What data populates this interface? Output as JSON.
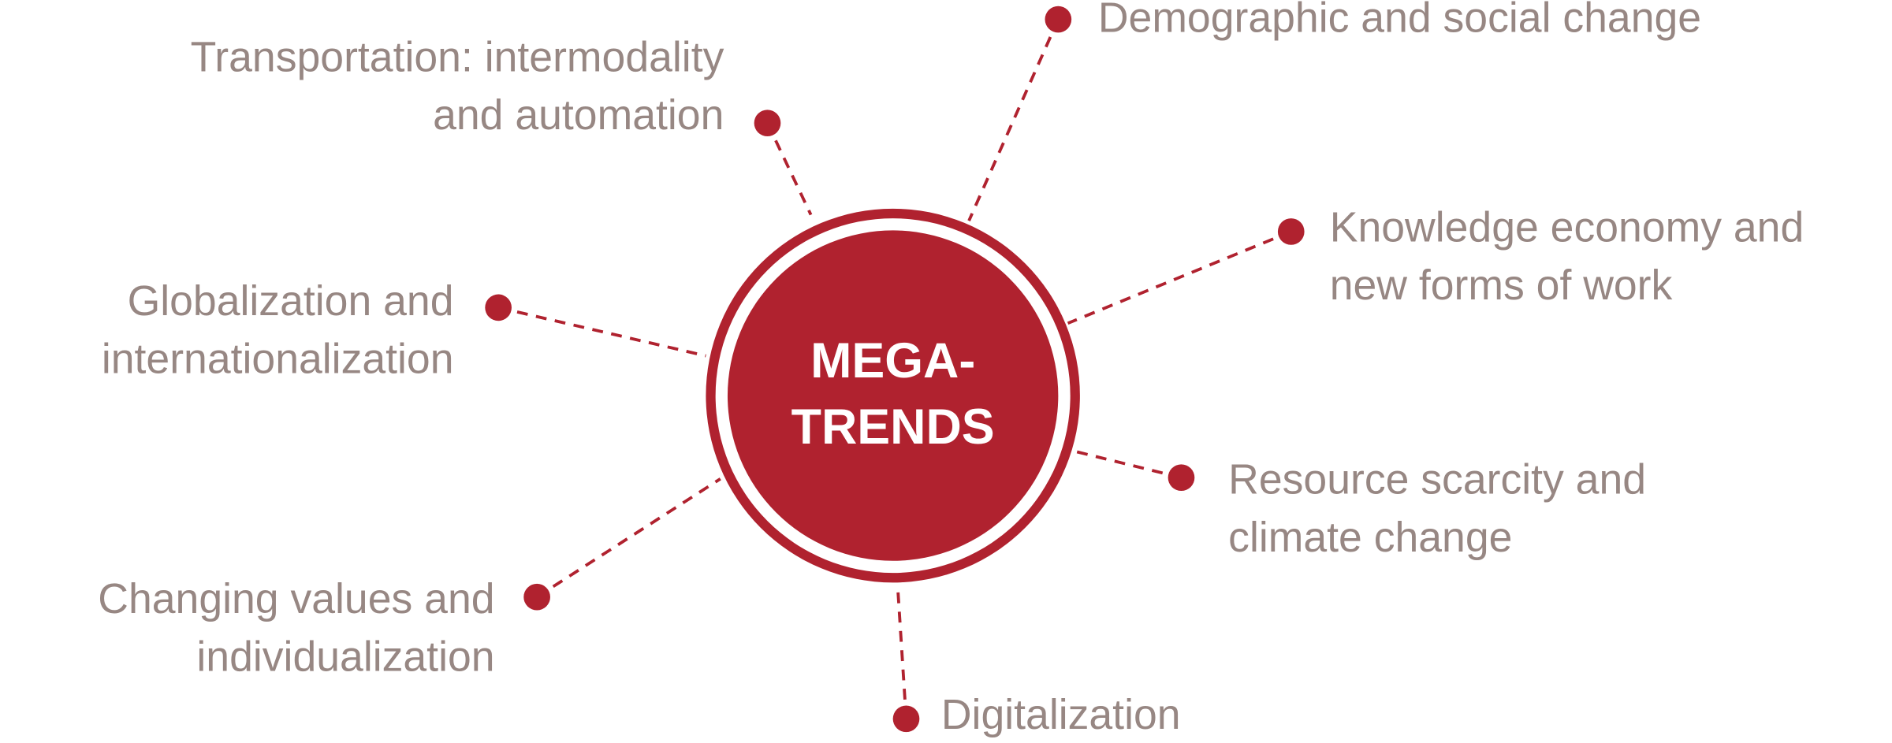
{
  "center": {
    "lines": [
      "MEGA-",
      "TRENDS"
    ]
  },
  "nodes": [
    {
      "lines": [
        "Transportation: intermodality",
        "and automation"
      ]
    },
    {
      "lines": [
        "Demographic and social change"
      ]
    },
    {
      "lines": [
        "Knowledge economy and",
        "new forms of work"
      ]
    },
    {
      "lines": [
        "Globalization and",
        "internationalization"
      ]
    },
    {
      "lines": [
        "Resource scarcity and",
        "climate change"
      ]
    },
    {
      "lines": [
        "Changing values and",
        "individualization"
      ]
    },
    {
      "lines": [
        "Digitalization"
      ]
    }
  ]
}
